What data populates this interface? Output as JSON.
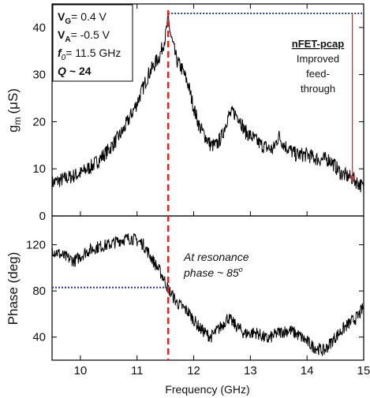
{
  "chart_data": [
    {
      "type": "line",
      "panel": "top",
      "ylabel_main": "g",
      "ylabel_sub": "m",
      "ylabel_unit": "(μS)",
      "xlim": [
        9.5,
        15
      ],
      "ylim": [
        0,
        45
      ],
      "yticks": [
        "0",
        "10",
        "20",
        "30",
        "40"
      ],
      "series": [
        {
          "color": "#000000",
          "x": [
            9.5,
            9.75,
            10,
            10.25,
            10.5,
            10.75,
            11,
            11.2,
            11.4,
            11.5,
            11.55,
            11.6,
            11.7,
            11.8,
            11.9,
            12,
            12.1,
            12.2,
            12.3,
            12.4,
            12.5,
            12.6,
            12.7,
            12.8,
            12.9,
            13,
            13.2,
            13.4,
            13.5,
            13.6,
            13.8,
            14,
            14.2,
            14.4,
            14.6,
            14.8,
            15
          ],
          "y": [
            7,
            8,
            9,
            11,
            14,
            18,
            24,
            30,
            34,
            38,
            42,
            38,
            33,
            31,
            28,
            23,
            19,
            17,
            15,
            15,
            17,
            21,
            22,
            21,
            18,
            17,
            15,
            14,
            17,
            15,
            13,
            13,
            12,
            12,
            9,
            8,
            6
          ]
        }
      ],
      "annotations": {
        "vg_label": "V",
        "vg_sub": "G",
        "vg_value": "= 0.4 V",
        "va_label": "V",
        "va_sub": "A",
        "va_value": "= -0.5 V",
        "f0_label": "f",
        "f0_sub": "0",
        "f0_value": "= 11.5 GHz",
        "q_label": "Q",
        "q_value": "~ 24",
        "side_title": "nFET-pcap",
        "side_line1": "Improved",
        "side_line2": "feed-",
        "side_line3": "through"
      },
      "reference_level": 43,
      "arrow_from": 43,
      "arrow_to": 7,
      "arrow_x": 14.8,
      "resonance_x": 11.55
    },
    {
      "type": "line",
      "panel": "bottom",
      "ylabel": "Phase (deg)",
      "xlabel": "Frequency (GHz)",
      "xlim": [
        9.5,
        15
      ],
      "ylim": [
        20,
        145
      ],
      "xticks": [
        "10",
        "11",
        "12",
        "13",
        "14",
        "15"
      ],
      "yticks": [
        "40",
        "80",
        "120"
      ],
      "series": [
        {
          "color": "#000000",
          "x": [
            9.5,
            9.7,
            9.9,
            10.1,
            10.3,
            10.5,
            10.7,
            10.9,
            11.1,
            11.3,
            11.45,
            11.55,
            11.7,
            11.9,
            12.1,
            12.3,
            12.5,
            12.6,
            12.7,
            12.9,
            13.1,
            13.3,
            13.5,
            13.7,
            13.9,
            14.1,
            14.3,
            14.5,
            14.7,
            14.9,
            15
          ],
          "y": [
            116,
            110,
            106,
            114,
            118,
            120,
            124,
            126,
            121,
            105,
            93,
            82,
            70,
            62,
            48,
            40,
            50,
            57,
            52,
            43,
            44,
            38,
            44,
            46,
            40,
            32,
            28,
            40,
            50,
            58,
            66
          ]
        }
      ],
      "annotations": {
        "line1": "At resonance",
        "line2": "phase ~ 85",
        "line2_sup": "o"
      },
      "reference_level": 83,
      "resonance_x": 11.55
    }
  ]
}
